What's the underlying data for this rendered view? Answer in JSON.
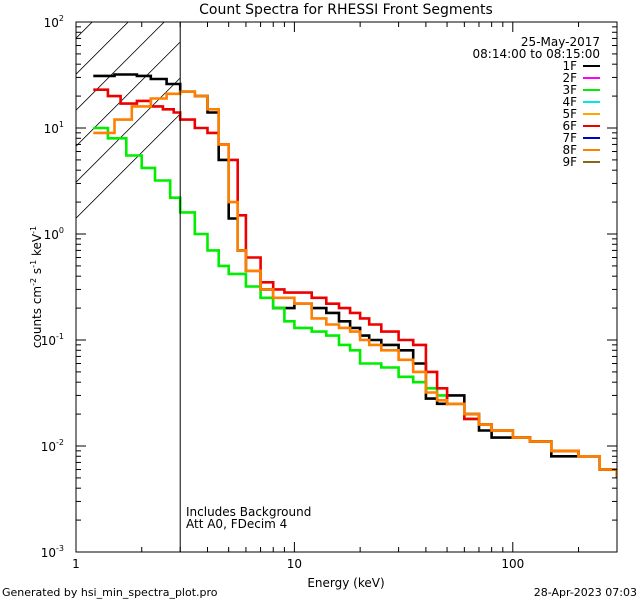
{
  "chart_data": {
    "type": "line",
    "title": "Count Spectra for RHESSI Front Segments",
    "xlabel": "Energy (keV)",
    "ylabel_parts": [
      "counts cm",
      "-2",
      " s",
      "-1",
      " keV",
      "-1"
    ],
    "xscale": "log",
    "yscale": "log",
    "xlim": [
      1,
      300
    ],
    "ylim": [
      0.001,
      100
    ],
    "x_tick_labels": [
      {
        "value": 1,
        "label": "1"
      },
      {
        "value": 10,
        "label": "10"
      },
      {
        "value": 100,
        "label": "100"
      }
    ],
    "y_tick_labels": [
      {
        "value": 0.001,
        "base": "10",
        "exp": "-3"
      },
      {
        "value": 0.01,
        "base": "10",
        "exp": "-2"
      },
      {
        "value": 0.1,
        "base": "10",
        "exp": "-1"
      },
      {
        "value": 1,
        "base": "10",
        "exp": "0"
      },
      {
        "value": 10,
        "base": "10",
        "exp": "1"
      },
      {
        "value": 100,
        "base": "10",
        "exp": "2"
      }
    ],
    "date": "25-May-2017",
    "time_range": "08:14:00 to 08:15:00",
    "shaded_region_max_energy": 3,
    "annotations": [
      "Includes Background",
      "Att A0, FDecim 4"
    ],
    "legend_position": "top-right",
    "series": [
      {
        "name": "1F",
        "color": "#000000",
        "plotted": true,
        "x": [
          1.2,
          1.5,
          1.9,
          2.2,
          2.6,
          3.0,
          3.5,
          4.0,
          4.5,
          5.0,
          5.5,
          6.0,
          7.0,
          8.0,
          9.0,
          10.0,
          12.0,
          14.0,
          16.0,
          18.0,
          20.0,
          22.0,
          25.0,
          30.0,
          35.0,
          40.0,
          45.0,
          50.0,
          60.0,
          70.0,
          80.0,
          100.0,
          120.0,
          150.0,
          200.0,
          250.0,
          300.0
        ],
        "y": [
          31,
          32,
          31,
          29,
          26,
          22,
          20,
          14,
          5,
          1.4,
          0.7,
          0.45,
          0.3,
          0.2,
          0.2,
          0.22,
          0.2,
          0.18,
          0.15,
          0.13,
          0.11,
          0.1,
          0.09,
          0.08,
          0.06,
          0.028,
          0.025,
          0.03,
          0.02,
          0.014,
          0.012,
          0.012,
          0.011,
          0.008,
          0.008,
          0.006,
          0.005
        ]
      },
      {
        "name": "2F",
        "color": "#ff00ff",
        "plotted": false,
        "x": [],
        "y": []
      },
      {
        "name": "3F",
        "color": "#00ee00",
        "plotted": true,
        "x": [
          1.2,
          1.4,
          1.7,
          2.0,
          2.3,
          2.7,
          3.0,
          3.5,
          4.0,
          4.5,
          5.0,
          6.0,
          7.0,
          8.0,
          9.0,
          10.0,
          12.0,
          14.0,
          16.0,
          18.0,
          20.0,
          22.0,
          25.0,
          30.0,
          35.0,
          40.0,
          45.0,
          50.0,
          60.0,
          70.0,
          80.0,
          100.0,
          120.0,
          150.0,
          200.0,
          250.0,
          300.0
        ],
        "y": [
          10,
          8,
          5.5,
          4.2,
          3.2,
          2.2,
          1.6,
          1.0,
          0.7,
          0.5,
          0.42,
          0.32,
          0.25,
          0.2,
          0.15,
          0.13,
          0.12,
          0.11,
          0.09,
          0.08,
          0.06,
          0.06,
          0.055,
          0.045,
          0.04,
          0.035,
          0.03,
          0.025,
          0.018,
          0.016,
          0.014,
          0.012,
          0.011,
          0.009,
          0.008,
          0.006,
          0.005
        ]
      },
      {
        "name": "4F",
        "color": "#00e5ee",
        "plotted": false,
        "x": [],
        "y": []
      },
      {
        "name": "5F",
        "color": "#ffa500",
        "plotted": false,
        "x": [],
        "y": []
      },
      {
        "name": "6F",
        "color": "#ee0000",
        "plotted": true,
        "x": [
          1.2,
          1.4,
          1.6,
          1.9,
          2.2,
          2.5,
          2.8,
          3.0,
          3.5,
          4.0,
          4.5,
          5.0,
          5.5,
          6.0,
          7.0,
          8.0,
          9.0,
          10.0,
          12.0,
          14.0,
          16.0,
          18.0,
          20.0,
          22.0,
          25.0,
          30.0,
          35.0,
          40.0,
          45.0,
          50.0,
          60.0,
          70.0,
          80.0,
          100.0,
          120.0,
          150.0,
          200.0,
          250.0,
          300.0
        ],
        "y": [
          23,
          20,
          17,
          18,
          16,
          15,
          14,
          12,
          10,
          9,
          7,
          5,
          1.5,
          0.6,
          0.35,
          0.3,
          0.28,
          0.28,
          0.25,
          0.22,
          0.2,
          0.18,
          0.16,
          0.14,
          0.12,
          0.1,
          0.09,
          0.05,
          0.035,
          0.025,
          0.018,
          0.016,
          0.014,
          0.012,
          0.011,
          0.009,
          0.008,
          0.006,
          0.005
        ]
      },
      {
        "name": "7F",
        "color": "#0000cd",
        "plotted": false,
        "x": [],
        "y": []
      },
      {
        "name": "8F",
        "color": "#ff7f00",
        "plotted": true,
        "x": [
          1.2,
          1.5,
          1.8,
          2.2,
          2.6,
          3.0,
          3.5,
          4.0,
          4.5,
          5.0,
          5.5,
          6.0,
          7.0,
          8.0,
          9.0,
          10.0,
          12.0,
          14.0,
          16.0,
          18.0,
          20.0,
          22.0,
          25.0,
          30.0,
          35.0,
          40.0,
          45.0,
          50.0,
          60.0,
          70.0,
          80.0,
          100.0,
          120.0,
          150.0,
          200.0,
          250.0,
          300.0
        ],
        "y": [
          9,
          12,
          16,
          19,
          21,
          22,
          20,
          15,
          7,
          2.0,
          0.7,
          0.45,
          0.3,
          0.25,
          0.25,
          0.22,
          0.16,
          0.14,
          0.13,
          0.12,
          0.1,
          0.09,
          0.08,
          0.065,
          0.05,
          0.032,
          0.027,
          0.025,
          0.02,
          0.016,
          0.014,
          0.012,
          0.011,
          0.009,
          0.008,
          0.006,
          0.005
        ]
      },
      {
        "name": "9F",
        "color": "#8b6914",
        "plotted": false,
        "x": [],
        "y": []
      }
    ]
  },
  "footer": {
    "generated_by": "Generated by hsi_min_spectra_plot.pro",
    "timestamp": "28-Apr-2023 07:03"
  }
}
